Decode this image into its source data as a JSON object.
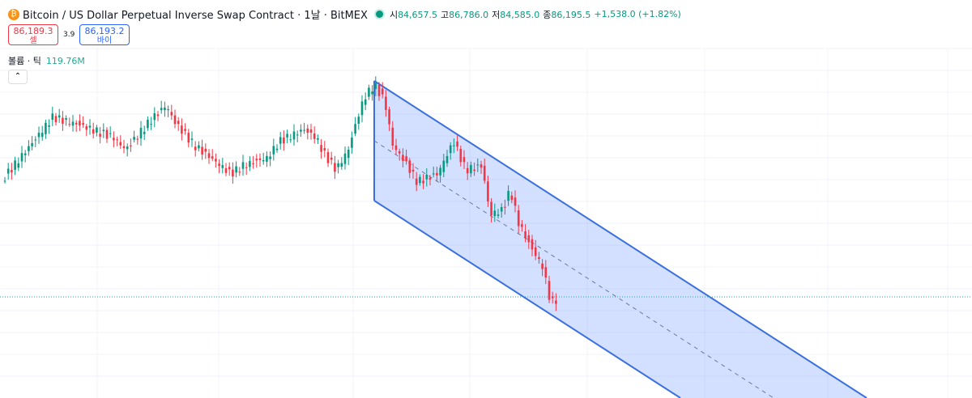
{
  "header": {
    "symbol": "Bitcoin / US Dollar Perpetual Inverse Swap Contract · 1날 · BitMEX",
    "ohlc": [
      {
        "label": "시",
        "value": "84,657.5"
      },
      {
        "label": "고",
        "value": "86,786.0"
      },
      {
        "label": "저",
        "value": "84,585.0"
      },
      {
        "label": "종",
        "value": "86,195.5"
      }
    ],
    "change": "+1,538.0 (+1.82%)"
  },
  "trade": {
    "sell_price": "86,189.3",
    "sell_label": "셀",
    "spread": "3.9",
    "buy_price": "86,193.2",
    "buy_label": "바이"
  },
  "volume": {
    "label": "볼륨 · 틱",
    "value": "119.76M"
  }
}
